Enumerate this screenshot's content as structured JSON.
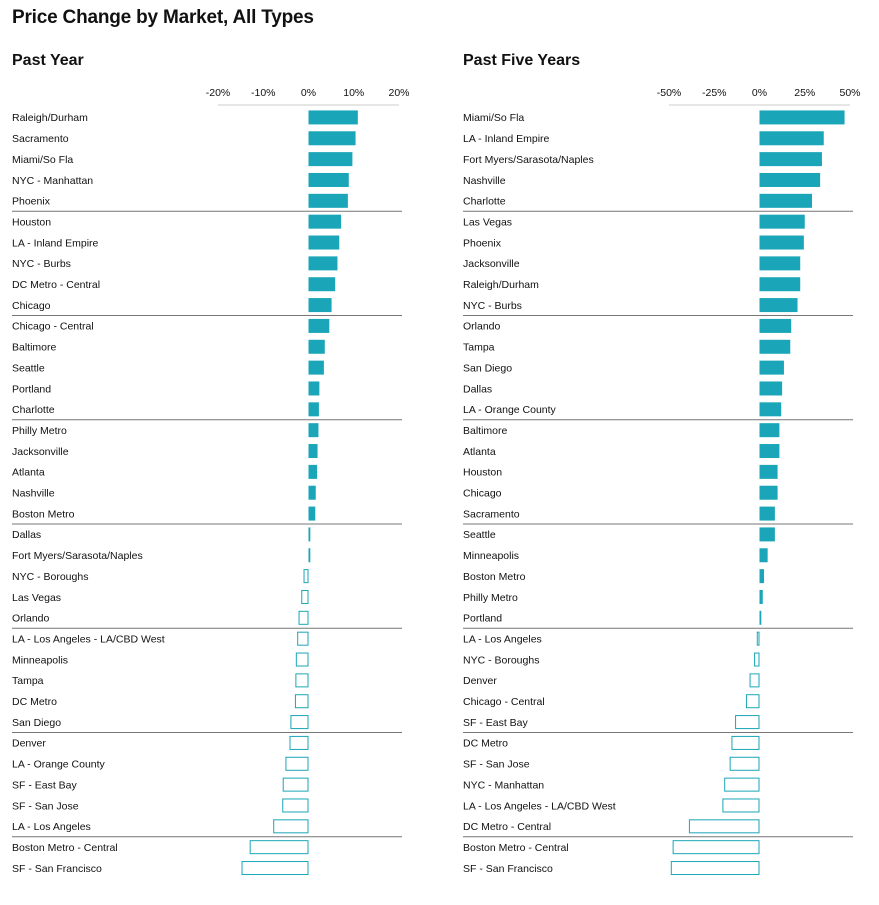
{
  "title": "Price Change by Market, All Types",
  "colors": {
    "bar": "#1aa6b8",
    "negative_stroke": "#1aa6b8",
    "divider": "#777777",
    "axis": "#cccccc"
  },
  "chart_data": [
    {
      "type": "bar",
      "orientation": "horizontal",
      "title": "Past Year",
      "xlim": [
        -20,
        20
      ],
      "ticks": [
        -20,
        -10,
        0,
        10,
        20
      ],
      "tick_labels": [
        "-20%",
        "-10%",
        "0%",
        "10%",
        "20%"
      ],
      "negative_style": "outline",
      "group_size": 5,
      "categories": [
        "Raleigh/Durham",
        "Sacramento",
        "Miami/So Fla",
        "NYC - Manhattan",
        "Phoenix",
        "Houston",
        "LA - Inland Empire",
        "NYC - Burbs",
        "DC Metro - Central",
        "Chicago",
        "Chicago - Central",
        "Baltimore",
        "Seattle",
        "Portland",
        "Charlotte",
        "Philly Metro",
        "Jacksonville",
        "Atlanta",
        "Nashville",
        "Boston Metro",
        "Dallas",
        "Fort Myers/Sarasota/Naples",
        "NYC - Boroughs",
        "Las Vegas",
        "Orlando",
        "LA - Los Angeles - LA/CBD West",
        "Minneapolis",
        "Tampa",
        "DC Metro",
        "San Diego",
        "Denver",
        "LA - Orange County",
        "SF - East Bay",
        "SF - San Jose",
        "LA - Los Angeles",
        "Boston Metro - Central",
        "SF - San Francisco"
      ],
      "values": [
        10.9,
        10.4,
        9.7,
        8.9,
        8.7,
        7.2,
        6.8,
        6.4,
        5.9,
        5.1,
        4.6,
        3.6,
        3.4,
        2.4,
        2.3,
        2.2,
        2.0,
        1.9,
        1.6,
        1.5,
        0.4,
        0.4,
        -1.1,
        -1.6,
        -2.2,
        -2.5,
        -2.8,
        -2.9,
        -3.0,
        -4.0,
        -4.2,
        -5.1,
        -5.7,
        -5.8,
        -7.8,
        -13.0,
        -14.8
      ]
    },
    {
      "type": "bar",
      "orientation": "horizontal",
      "title": "Past Five Years",
      "xlim": [
        -50,
        50
      ],
      "ticks": [
        -50,
        -25,
        0,
        25,
        50
      ],
      "tick_labels": [
        "-50%",
        "-25%",
        "0%",
        "25%",
        "50%"
      ],
      "negative_style": "outline",
      "group_size": 5,
      "categories": [
        "Miami/So Fla",
        "LA - Inland Empire",
        "Fort Myers/Sarasota/Naples",
        "Nashville",
        "Charlotte",
        "Las Vegas",
        "Phoenix",
        "Jacksonville",
        "Raleigh/Durham",
        "NYC - Burbs",
        "Orlando",
        "Tampa",
        "San Diego",
        "Dallas",
        "LA - Orange County",
        "Baltimore",
        "Atlanta",
        "Houston",
        "Chicago",
        "Sacramento",
        "Seattle",
        "Minneapolis",
        "Boston Metro",
        "Philly Metro",
        "Portland",
        "LA - Los Angeles",
        "NYC - Boroughs",
        "Denver",
        "Chicago - Central",
        "SF - East Bay",
        "DC Metro",
        "SF - San Jose",
        "NYC - Manhattan",
        "LA - Los Angeles - LA/CBD West",
        "DC Metro - Central",
        "Boston Metro - Central",
        "SF - San Francisco"
      ],
      "values": [
        47.0,
        35.5,
        34.5,
        33.5,
        29.0,
        25.0,
        24.5,
        22.5,
        22.5,
        21.0,
        17.5,
        17.0,
        13.5,
        12.5,
        12.0,
        11.0,
        11.0,
        10.0,
        10.0,
        8.5,
        8.5,
        4.5,
        2.5,
        1.8,
        1.0,
        -1.5,
        -3.0,
        -5.5,
        -7.5,
        -13.5,
        -15.5,
        -16.5,
        -19.5,
        -20.5,
        -39.0,
        -48.0,
        -49.0
      ]
    }
  ]
}
